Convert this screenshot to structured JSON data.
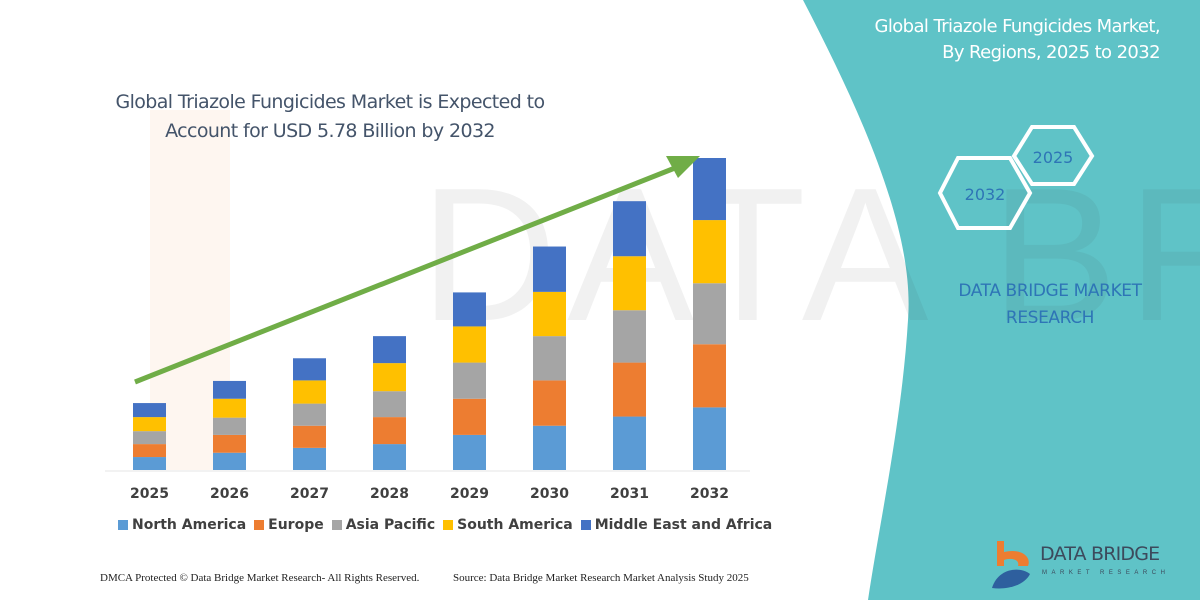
{
  "header": {
    "title": "Global Triazole Fungicides Market is Expected to Account for USD 5.78 Billion by 2032"
  },
  "side_panel": {
    "title_line1": "Global Triazole Fungicides Market,",
    "title_line2": "By Regions, 2025 to 2032",
    "hex_start": "2025",
    "hex_end": "2032",
    "brand_line1": "DATA BRIDGE MARKET",
    "brand_line2": "RESEARCH",
    "logo_text": "DATA BRIDGE",
    "logo_sub": "MARKET RESEARCH",
    "background_color": "#5fc3c7"
  },
  "footer": {
    "copyright": "DMCA Protected © Data Bridge Market Research- All Rights Reserved.",
    "source": "Source: Data Bridge Market Research Market Analysis Study 2025"
  },
  "chart_data": {
    "type": "bar",
    "stacked": true,
    "title": "Global Triazole Fungicides Market is Expected to Account for USD 5.78 Billion by 2032",
    "categories": [
      "2025",
      "2026",
      "2027",
      "2028",
      "2029",
      "2030",
      "2031",
      "2032"
    ],
    "series": [
      {
        "name": "North America",
        "color": "#5b9bd5",
        "values": [
          0.24,
          0.32,
          0.41,
          0.48,
          0.65,
          0.82,
          0.99,
          1.16
        ]
      },
      {
        "name": "Europe",
        "color": "#ed7d31",
        "values": [
          0.24,
          0.33,
          0.41,
          0.5,
          0.67,
          0.84,
          1.0,
          1.17
        ]
      },
      {
        "name": "Asia Pacific",
        "color": "#a5a5a5",
        "values": [
          0.24,
          0.32,
          0.41,
          0.48,
          0.67,
          0.82,
          0.97,
          1.13
        ]
      },
      {
        "name": "South America",
        "color": "#ffc000",
        "values": [
          0.26,
          0.35,
          0.43,
          0.52,
          0.67,
          0.82,
          1.0,
          1.17
        ]
      },
      {
        "name": "Middle East and Africa",
        "color": "#4472c4",
        "values": [
          0.26,
          0.33,
          0.41,
          0.5,
          0.63,
          0.84,
          1.02,
          1.15
        ]
      }
    ],
    "ylim": [
      0,
      5.78
    ],
    "y_axis_shown": false,
    "grid": false,
    "legend": "bottom",
    "trend_arrow_color": "#70ad47"
  }
}
